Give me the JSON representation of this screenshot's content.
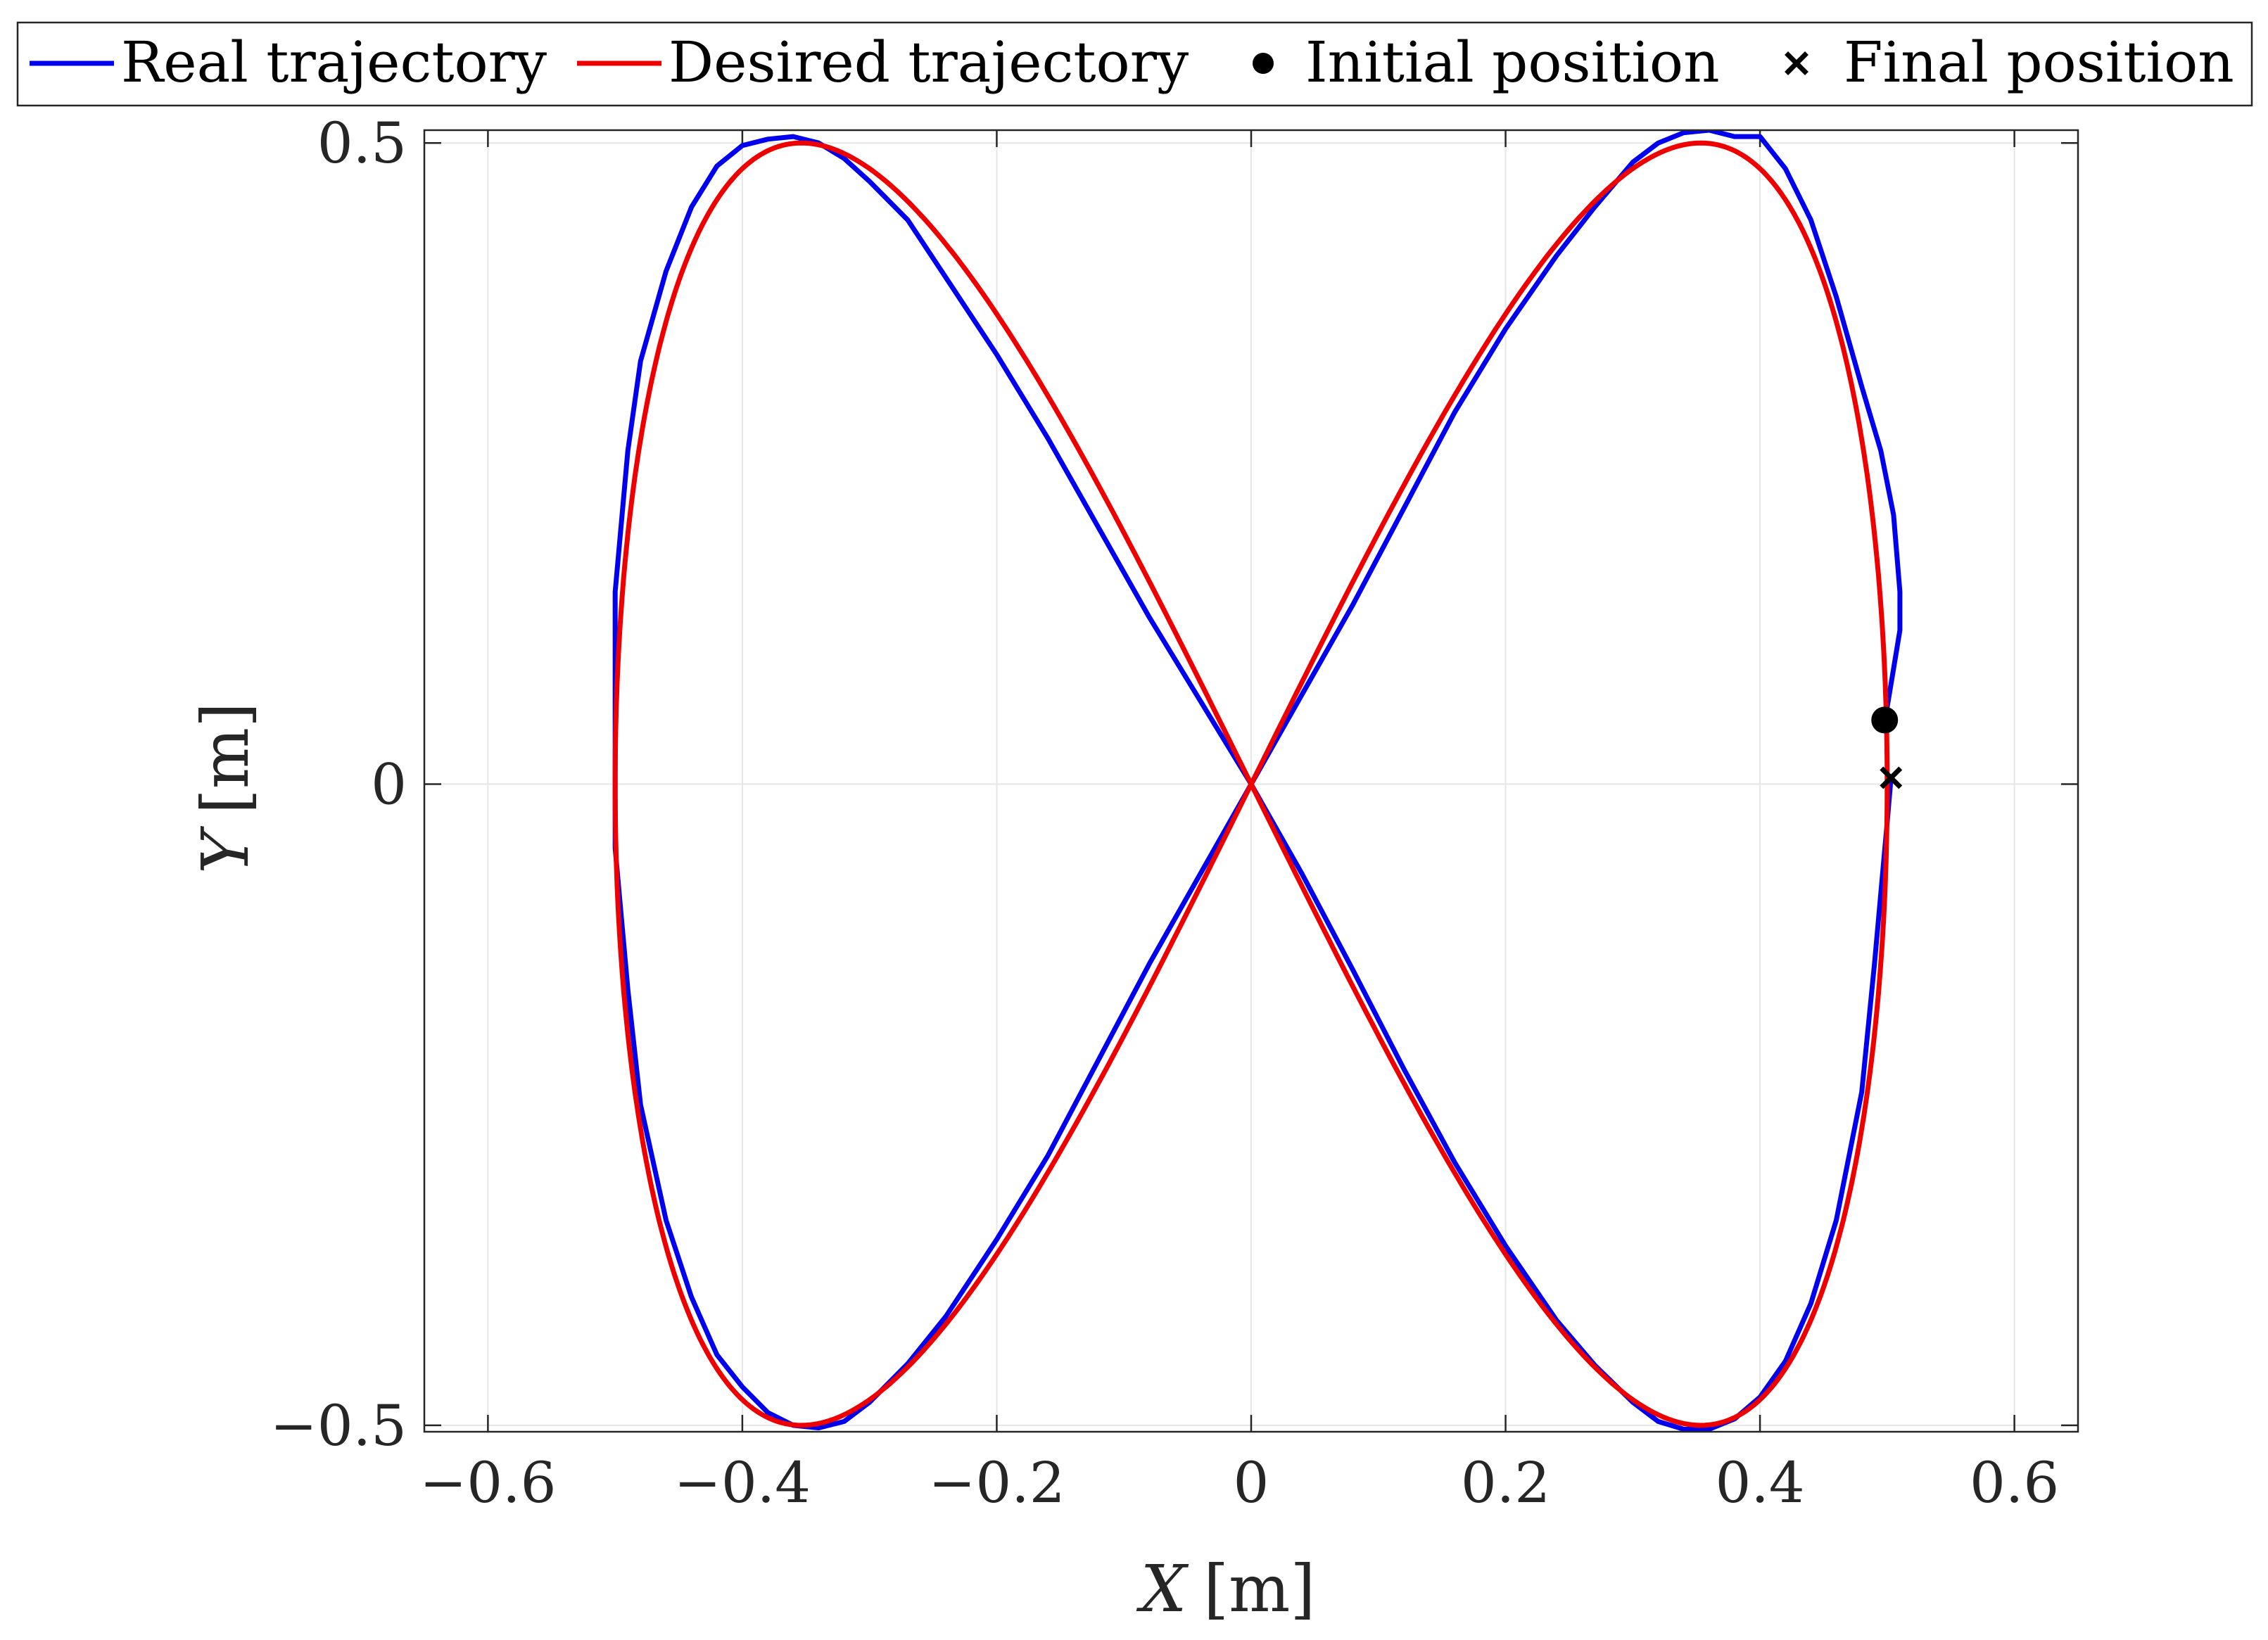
{
  "chart_data": {
    "type": "line",
    "title": "",
    "xlabel": "X [m]",
    "ylabel": "Y [m]",
    "xlabel_var": "X",
    "xlabel_unit": "[m]",
    "ylabel_var": "Y",
    "ylabel_unit": "[m]",
    "xlim": [
      -0.65,
      0.65
    ],
    "ylim": [
      -0.505,
      0.51
    ],
    "xticks": [
      -0.6,
      -0.4,
      -0.2,
      0,
      0.2,
      0.4,
      0.6
    ],
    "xtick_labels": [
      "−0.6",
      "−0.4",
      "−0.2",
      "0",
      "0.2",
      "0.4",
      "0.6"
    ],
    "yticks": [
      -0.5,
      0,
      0.5
    ],
    "ytick_labels": [
      "−0.5",
      "0",
      "0.5"
    ],
    "grid": true,
    "legend_position": "top, outside, horizontal",
    "series": [
      {
        "name": "Real trajectory",
        "color": "#0000ee",
        "x": [
          0.5,
          0.505,
          0.51,
          0.51,
          0.505,
          0.495,
          0.48,
          0.46,
          0.44,
          0.42,
          0.4,
          0.38,
          0.36,
          0.34,
          0.32,
          0.3,
          0.27,
          0.24,
          0.2,
          0.16,
          0.12,
          0.08,
          0.04,
          0.0,
          -0.04,
          -0.08,
          -0.12,
          -0.16,
          -0.2,
          -0.24,
          -0.27,
          -0.3,
          -0.32,
          -0.34,
          -0.36,
          -0.38,
          -0.4,
          -0.42,
          -0.44,
          -0.46,
          -0.48,
          -0.49,
          -0.5,
          -0.5,
          -0.5,
          -0.49,
          -0.48,
          -0.46,
          -0.44,
          -0.42,
          -0.4,
          -0.38,
          -0.36,
          -0.34,
          -0.32,
          -0.3,
          -0.27,
          -0.24,
          -0.2,
          -0.16,
          -0.12,
          -0.08,
          -0.04,
          0.0,
          0.04,
          0.08,
          0.12,
          0.16,
          0.2,
          0.24,
          0.27,
          0.3,
          0.32,
          0.34,
          0.36,
          0.38,
          0.4,
          0.42,
          0.44,
          0.46,
          0.48,
          0.49,
          0.5,
          0.503
        ],
        "y": [
          0.06,
          0.09,
          0.12,
          0.15,
          0.21,
          0.26,
          0.31,
          0.38,
          0.44,
          0.48,
          0.505,
          0.505,
          0.51,
          0.508,
          0.5,
          0.485,
          0.45,
          0.412,
          0.355,
          0.29,
          0.215,
          0.14,
          0.07,
          0.0,
          -0.07,
          -0.14,
          -0.215,
          -0.29,
          -0.355,
          -0.415,
          -0.452,
          -0.482,
          -0.497,
          -0.502,
          -0.5,
          -0.49,
          -0.47,
          -0.445,
          -0.4,
          -0.34,
          -0.25,
          -0.16,
          -0.05,
          0.05,
          0.15,
          0.26,
          0.33,
          0.4,
          0.45,
          0.482,
          0.498,
          0.503,
          0.505,
          0.5,
          0.488,
          0.47,
          0.44,
          0.395,
          0.335,
          0.27,
          0.2,
          0.13,
          0.065,
          0.0,
          -0.07,
          -0.145,
          -0.222,
          -0.295,
          -0.36,
          -0.418,
          -0.453,
          -0.482,
          -0.497,
          -0.503,
          -0.503,
          -0.495,
          -0.478,
          -0.45,
          -0.405,
          -0.34,
          -0.24,
          -0.14,
          -0.03,
          0.005
        ]
      },
      {
        "name": "Desired trajectory",
        "color": "#ee0000",
        "equation": "x = 0.5 cos(t), y = 0.5 sin(2t)"
      }
    ],
    "markers": [
      {
        "name": "Initial position",
        "shape": "filled-circle",
        "color": "#000000",
        "x": 0.498,
        "y": 0.05
      },
      {
        "name": "Final position",
        "shape": "cross",
        "color": "#000000",
        "x": 0.503,
        "y": 0.005
      }
    ]
  }
}
